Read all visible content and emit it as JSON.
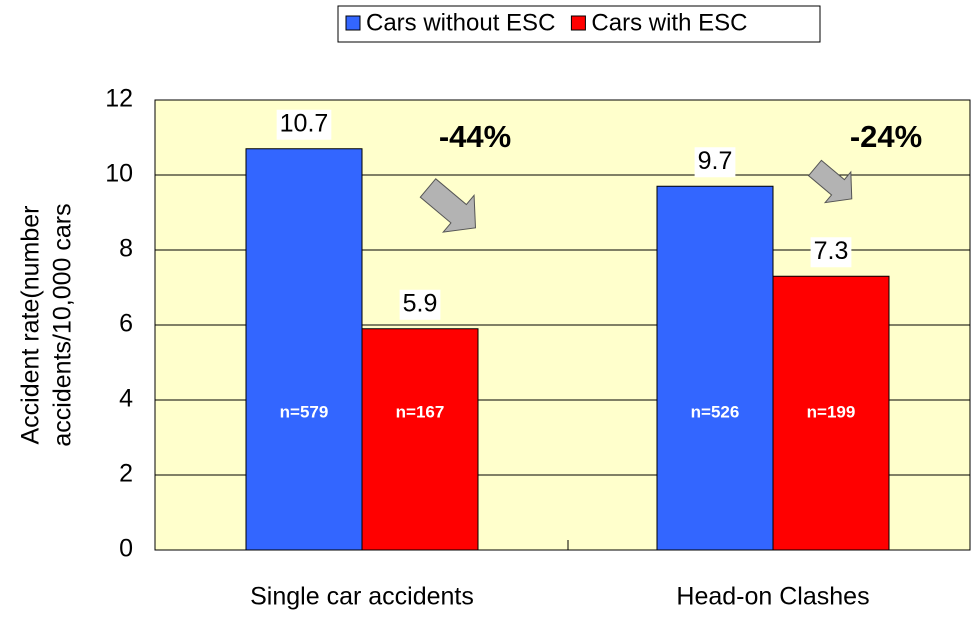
{
  "chart_data": {
    "type": "bar",
    "y_label": [
      "Accident rate(number",
      "accidents/10,000 cars"
    ],
    "categories": [
      "Single car accidents",
      "Head-on Clashes"
    ],
    "series": [
      {
        "name": "Cars without ESC",
        "color": "#3366ff",
        "values": [
          10.7,
          9.7
        ],
        "notes": [
          "n=579",
          "n=526"
        ]
      },
      {
        "name": "Cars with ESC",
        "color": "#ff0000",
        "values": [
          5.9,
          7.3
        ],
        "notes": [
          "n=167",
          "n=199"
        ]
      }
    ],
    "change_labels": [
      "-44%",
      "-24%"
    ],
    "ylim": [
      0,
      12
    ],
    "yticks": [
      0,
      2,
      4,
      6,
      8,
      10,
      12
    ],
    "grid": true,
    "plot_background": "#ffffcc"
  }
}
